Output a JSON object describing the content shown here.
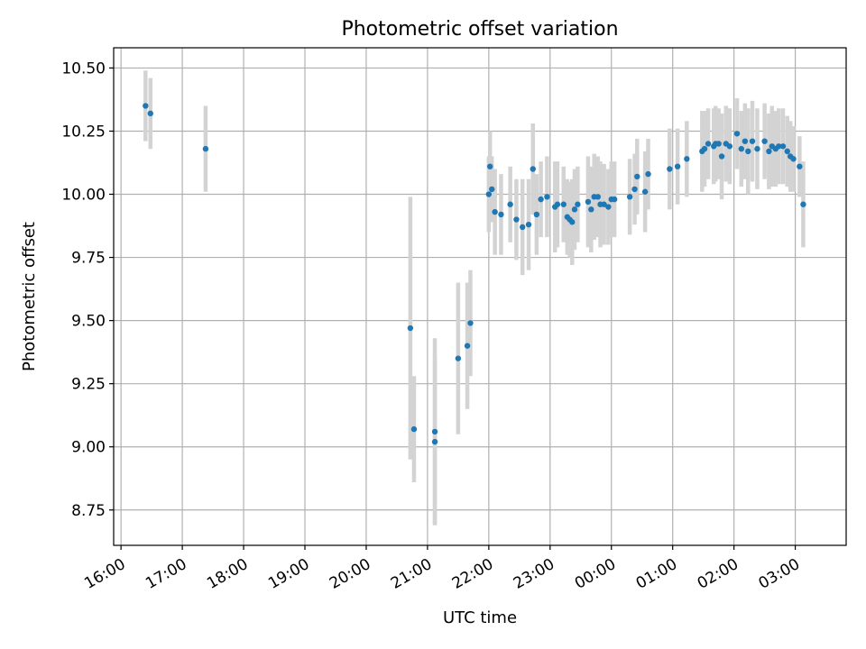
{
  "chart_data": {
    "type": "scatter",
    "title": "Photometric offset variation",
    "xlabel": "UTC time",
    "ylabel": "Photometric offset",
    "x_unit": "hours (UTC, wraps past midnight)",
    "x_tick_values": [
      16,
      17,
      18,
      19,
      20,
      21,
      22,
      23,
      24,
      25,
      26,
      27
    ],
    "x_tick_labels": [
      "16:00",
      "17:00",
      "18:00",
      "19:00",
      "20:00",
      "21:00",
      "22:00",
      "23:00",
      "00:00",
      "01:00",
      "02:00",
      "03:00"
    ],
    "y_tick_values": [
      8.75,
      9.0,
      9.25,
      9.5,
      9.75,
      10.0,
      10.25,
      10.5
    ],
    "y_tick_labels": [
      "8.75",
      "9.00",
      "9.25",
      "9.50",
      "9.75",
      "10.00",
      "10.25",
      "10.50"
    ],
    "xlim": [
      15.88,
      27.83
    ],
    "ylim": [
      8.61,
      10.58
    ],
    "grid": true,
    "legend": "none",
    "colors": {
      "point": "#1f77b4",
      "errorbar": "#d3d3d3",
      "grid": "#b0b0b0"
    },
    "series": [
      {
        "x": [
          16.4,
          16.48,
          17.38,
          20.72,
          20.78,
          21.12,
          21.12,
          21.5,
          21.65,
          21.7,
          22.0,
          22.02,
          22.05,
          22.1,
          22.2,
          22.35,
          22.45,
          22.55,
          22.65,
          22.72,
          22.78,
          22.85,
          22.95,
          23.08,
          23.12,
          23.22,
          23.28,
          23.32,
          23.36,
          23.4,
          23.45,
          23.62,
          23.67,
          23.72,
          23.78,
          23.82,
          23.88,
          23.95,
          24.0,
          24.05,
          24.3,
          24.38,
          24.42,
          24.55,
          24.6,
          24.95,
          25.08,
          25.23,
          25.48,
          25.52,
          25.58,
          25.67,
          25.7,
          25.75,
          25.8,
          25.87,
          25.93,
          26.05,
          26.12,
          26.18,
          26.23,
          26.3,
          26.38,
          26.5,
          26.57,
          26.62,
          26.68,
          26.73,
          26.8,
          26.87,
          26.92,
          26.97,
          27.07,
          27.13
        ],
        "y": [
          10.35,
          10.32,
          10.18,
          9.47,
          9.07,
          9.06,
          9.02,
          9.35,
          9.4,
          9.49,
          10.0,
          10.11,
          10.02,
          9.93,
          9.92,
          9.96,
          9.9,
          9.87,
          9.88,
          10.1,
          9.92,
          9.98,
          9.99,
          9.95,
          9.96,
          9.96,
          9.91,
          9.9,
          9.89,
          9.94,
          9.96,
          9.97,
          9.94,
          9.99,
          9.99,
          9.96,
          9.96,
          9.95,
          9.98,
          9.98,
          9.99,
          10.02,
          10.07,
          10.01,
          10.08,
          10.1,
          10.11,
          10.14,
          10.17,
          10.18,
          10.2,
          10.19,
          10.2,
          10.2,
          10.15,
          10.2,
          10.19,
          10.24,
          10.18,
          10.21,
          10.17,
          10.21,
          10.18,
          10.21,
          10.17,
          10.19,
          10.18,
          10.19,
          10.19,
          10.17,
          10.15,
          10.14,
          10.11,
          9.96
        ],
        "yerr": [
          0.14,
          0.14,
          0.17,
          0.52,
          0.21,
          0.37,
          0.33,
          0.3,
          0.25,
          0.21,
          0.15,
          0.14,
          0.13,
          0.17,
          0.16,
          0.15,
          0.16,
          0.19,
          0.18,
          0.18,
          0.16,
          0.15,
          0.16,
          0.18,
          0.17,
          0.15,
          0.15,
          0.15,
          0.17,
          0.16,
          0.15,
          0.18,
          0.17,
          0.17,
          0.16,
          0.17,
          0.16,
          0.15,
          0.15,
          0.15,
          0.15,
          0.14,
          0.15,
          0.16,
          0.14,
          0.16,
          0.15,
          0.15,
          0.16,
          0.15,
          0.14,
          0.15,
          0.15,
          0.14,
          0.17,
          0.15,
          0.15,
          0.14,
          0.15,
          0.15,
          0.17,
          0.16,
          0.16,
          0.15,
          0.15,
          0.16,
          0.15,
          0.15,
          0.15,
          0.14,
          0.14,
          0.13,
          0.12,
          0.17
        ]
      }
    ]
  }
}
